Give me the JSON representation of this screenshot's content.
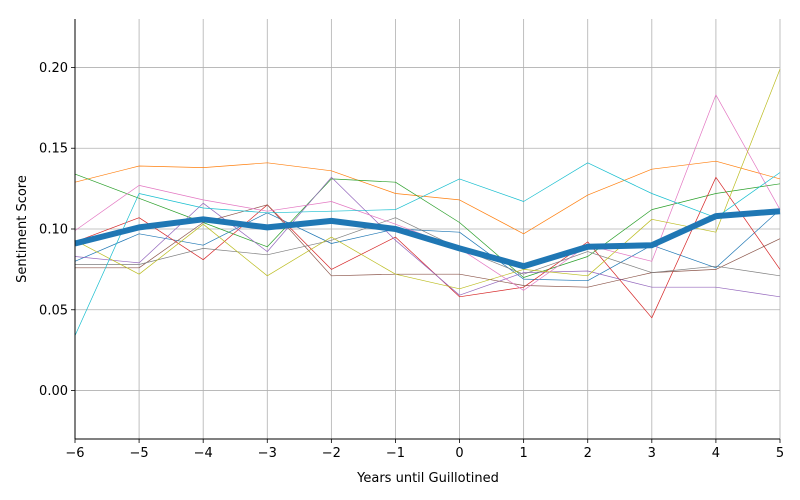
{
  "chart_data": {
    "type": "line",
    "title": "",
    "xlabel": "Years until Guillotined",
    "ylabel": "Sentiment Score",
    "xlim": [
      -6,
      5
    ],
    "ylim": [
      -0.03,
      0.23
    ],
    "xticks": [
      -6,
      -5,
      -4,
      -3,
      -2,
      -1,
      0,
      1,
      2,
      3,
      4,
      5
    ],
    "xtick_labels": [
      "−6",
      "−5",
      "−4",
      "−3",
      "−2",
      "−1",
      "0",
      "1",
      "2",
      "3",
      "4",
      "5"
    ],
    "yticks": [
      0.0,
      0.05,
      0.1,
      0.15,
      0.2
    ],
    "ytick_labels": [
      "0.00",
      "0.05",
      "0.10",
      "0.15",
      "0.20"
    ],
    "grid": true,
    "x": [
      -6,
      -5,
      -4,
      -3,
      -2,
      -1,
      0,
      1,
      2,
      3,
      4,
      5
    ],
    "series": [
      {
        "color": "#1f77b4",
        "width": 0.7,
        "values": [
          0.08,
          0.097,
          0.09,
          0.11,
          0.091,
          0.1,
          0.098,
          0.069,
          0.068,
          0.09,
          0.076,
          0.112
        ]
      },
      {
        "color": "#ff7f0e",
        "width": 0.7,
        "values": [
          0.129,
          0.139,
          0.138,
          0.141,
          0.136,
          0.122,
          0.118,
          0.097,
          0.121,
          0.137,
          0.142,
          0.131
        ]
      },
      {
        "color": "#2ca02c",
        "width": 0.7,
        "values": [
          0.134,
          0.119,
          0.104,
          0.089,
          0.131,
          0.129,
          0.104,
          0.07,
          0.083,
          0.112,
          0.122,
          0.128
        ]
      },
      {
        "color": "#d62728",
        "width": 0.7,
        "values": [
          0.092,
          0.107,
          0.081,
          0.115,
          0.075,
          0.095,
          0.058,
          0.064,
          0.092,
          0.045,
          0.132,
          0.075
        ]
      },
      {
        "color": "#9467bd",
        "width": 0.7,
        "values": [
          0.083,
          0.079,
          0.116,
          0.086,
          0.132,
          0.093,
          0.059,
          0.073,
          0.074,
          0.064,
          0.064,
          0.058
        ]
      },
      {
        "color": "#8c564b",
        "width": 0.7,
        "values": [
          0.076,
          0.076,
          0.104,
          0.115,
          0.071,
          0.072,
          0.072,
          0.065,
          0.064,
          0.073,
          0.075,
          0.094
        ]
      },
      {
        "color": "#e377c2",
        "width": 0.7,
        "values": [
          0.099,
          0.127,
          0.118,
          0.111,
          0.117,
          0.103,
          0.088,
          0.062,
          0.09,
          0.08,
          0.183,
          0.112
        ]
      },
      {
        "color": "#7f7f7f",
        "width": 0.7,
        "values": [
          0.078,
          0.078,
          0.088,
          0.084,
          0.093,
          0.107,
          0.088,
          0.072,
          0.086,
          0.073,
          0.077,
          0.071
        ]
      },
      {
        "color": "#bcbd22",
        "width": 0.7,
        "values": [
          0.093,
          0.072,
          0.103,
          0.071,
          0.095,
          0.072,
          0.063,
          0.075,
          0.071,
          0.106,
          0.098,
          0.199
        ]
      },
      {
        "color": "#17becf",
        "width": 0.7,
        "values": [
          0.034,
          0.122,
          0.113,
          0.11,
          0.111,
          0.112,
          0.131,
          0.117,
          0.141,
          0.122,
          0.107,
          0.135
        ]
      },
      {
        "color": "#1f77b4",
        "width": 6,
        "values": [
          0.091,
          0.101,
          0.106,
          0.101,
          0.105,
          0.1,
          0.088,
          0.077,
          0.089,
          0.09,
          0.108,
          0.111
        ]
      }
    ]
  }
}
